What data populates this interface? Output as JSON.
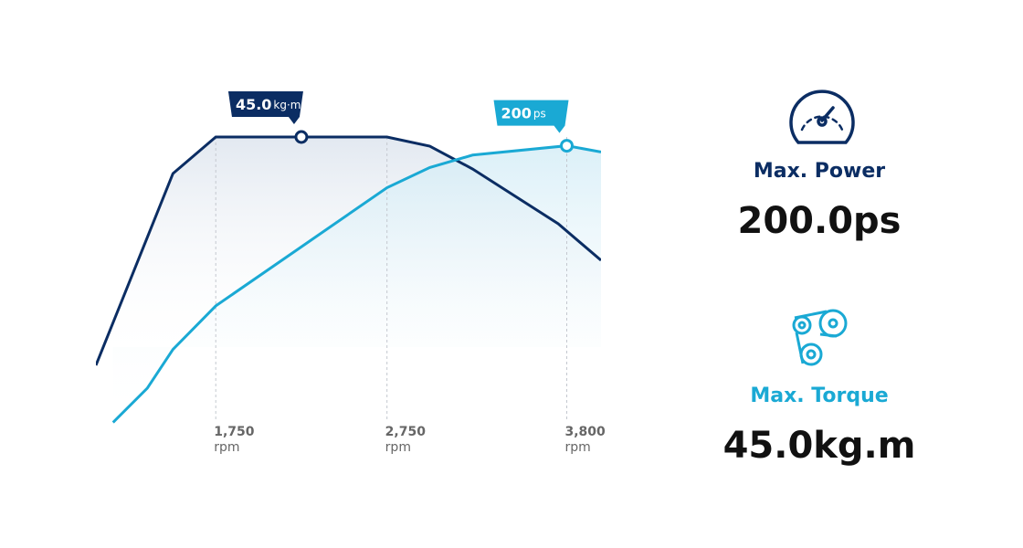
{
  "chart_data": {
    "type": "line",
    "x_unit": "rpm",
    "xlim": [
      1050,
      4000
    ],
    "xticks": [
      {
        "value": 1750,
        "label": "1,750"
      },
      {
        "value": 2750,
        "label": "2,750"
      },
      {
        "value": 3800,
        "label": "3,800"
      }
    ],
    "ylim": [
      10,
      50
    ],
    "y2lim": [
      0,
      235
    ],
    "series": [
      {
        "name": "Max. Torque",
        "color": "#0b2d63",
        "axis": "y",
        "x": [
          1050,
          1500,
          1750,
          2250,
          2750,
          3000,
          3250,
          3750,
          4000
        ],
        "values": [
          20,
          41,
          45,
          45,
          45,
          44,
          41.5,
          35.5,
          31.5
        ],
        "callout": {
          "x": 2250,
          "value": 45,
          "value_label": "45.0",
          "unit": "kg·m"
        },
        "summary": "45.0kg.m"
      },
      {
        "name": "Max. Power",
        "color": "#1aa9d4",
        "axis": "y2",
        "x": [
          1150,
          1350,
          1500,
          1750,
          2250,
          2750,
          3000,
          3250,
          3800,
          4000
        ],
        "values": [
          22,
          44,
          69,
          97,
          135,
          173,
          186,
          194,
          200,
          196
        ],
        "callout": {
          "x": 3800,
          "value": 200,
          "value_label": "200",
          "unit": "ps"
        },
        "summary": "200.0ps"
      }
    ]
  }
}
